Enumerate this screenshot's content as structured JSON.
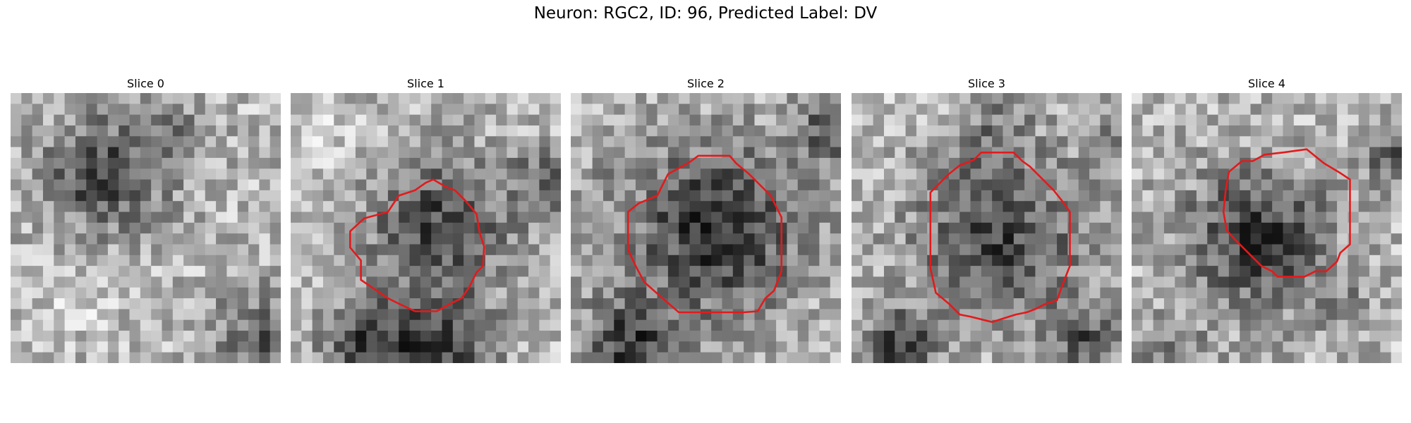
{
  "figure": {
    "suptitle": "Neuron: RGC2, ID: 96, Predicted Label: DV"
  },
  "colors": {
    "contour": "#e31a1c",
    "background": "#ffffff"
  },
  "panels": [
    {
      "title": "Slice 0",
      "has_contour": false
    },
    {
      "title": "Slice 1",
      "has_contour": true
    },
    {
      "title": "Slice 2",
      "has_contour": true
    },
    {
      "title": "Slice 3",
      "has_contour": true
    },
    {
      "title": "Slice 4",
      "has_contour": true
    }
  ]
}
